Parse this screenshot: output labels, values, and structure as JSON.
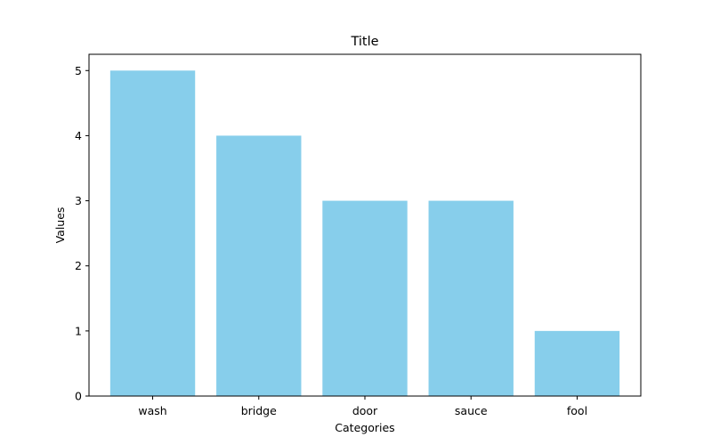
{
  "chart_data": {
    "type": "bar",
    "title": "Title",
    "xlabel": "Categories",
    "ylabel": "Values",
    "categories": [
      "wash",
      "bridge",
      "door",
      "sauce",
      "fool"
    ],
    "values": [
      5,
      4,
      3,
      3,
      1
    ],
    "ylim": [
      0,
      5.25
    ],
    "yticks": [
      0,
      1,
      2,
      3,
      4,
      5
    ],
    "bar_color": "#87CEEB",
    "grid": false,
    "legend": "none"
  }
}
